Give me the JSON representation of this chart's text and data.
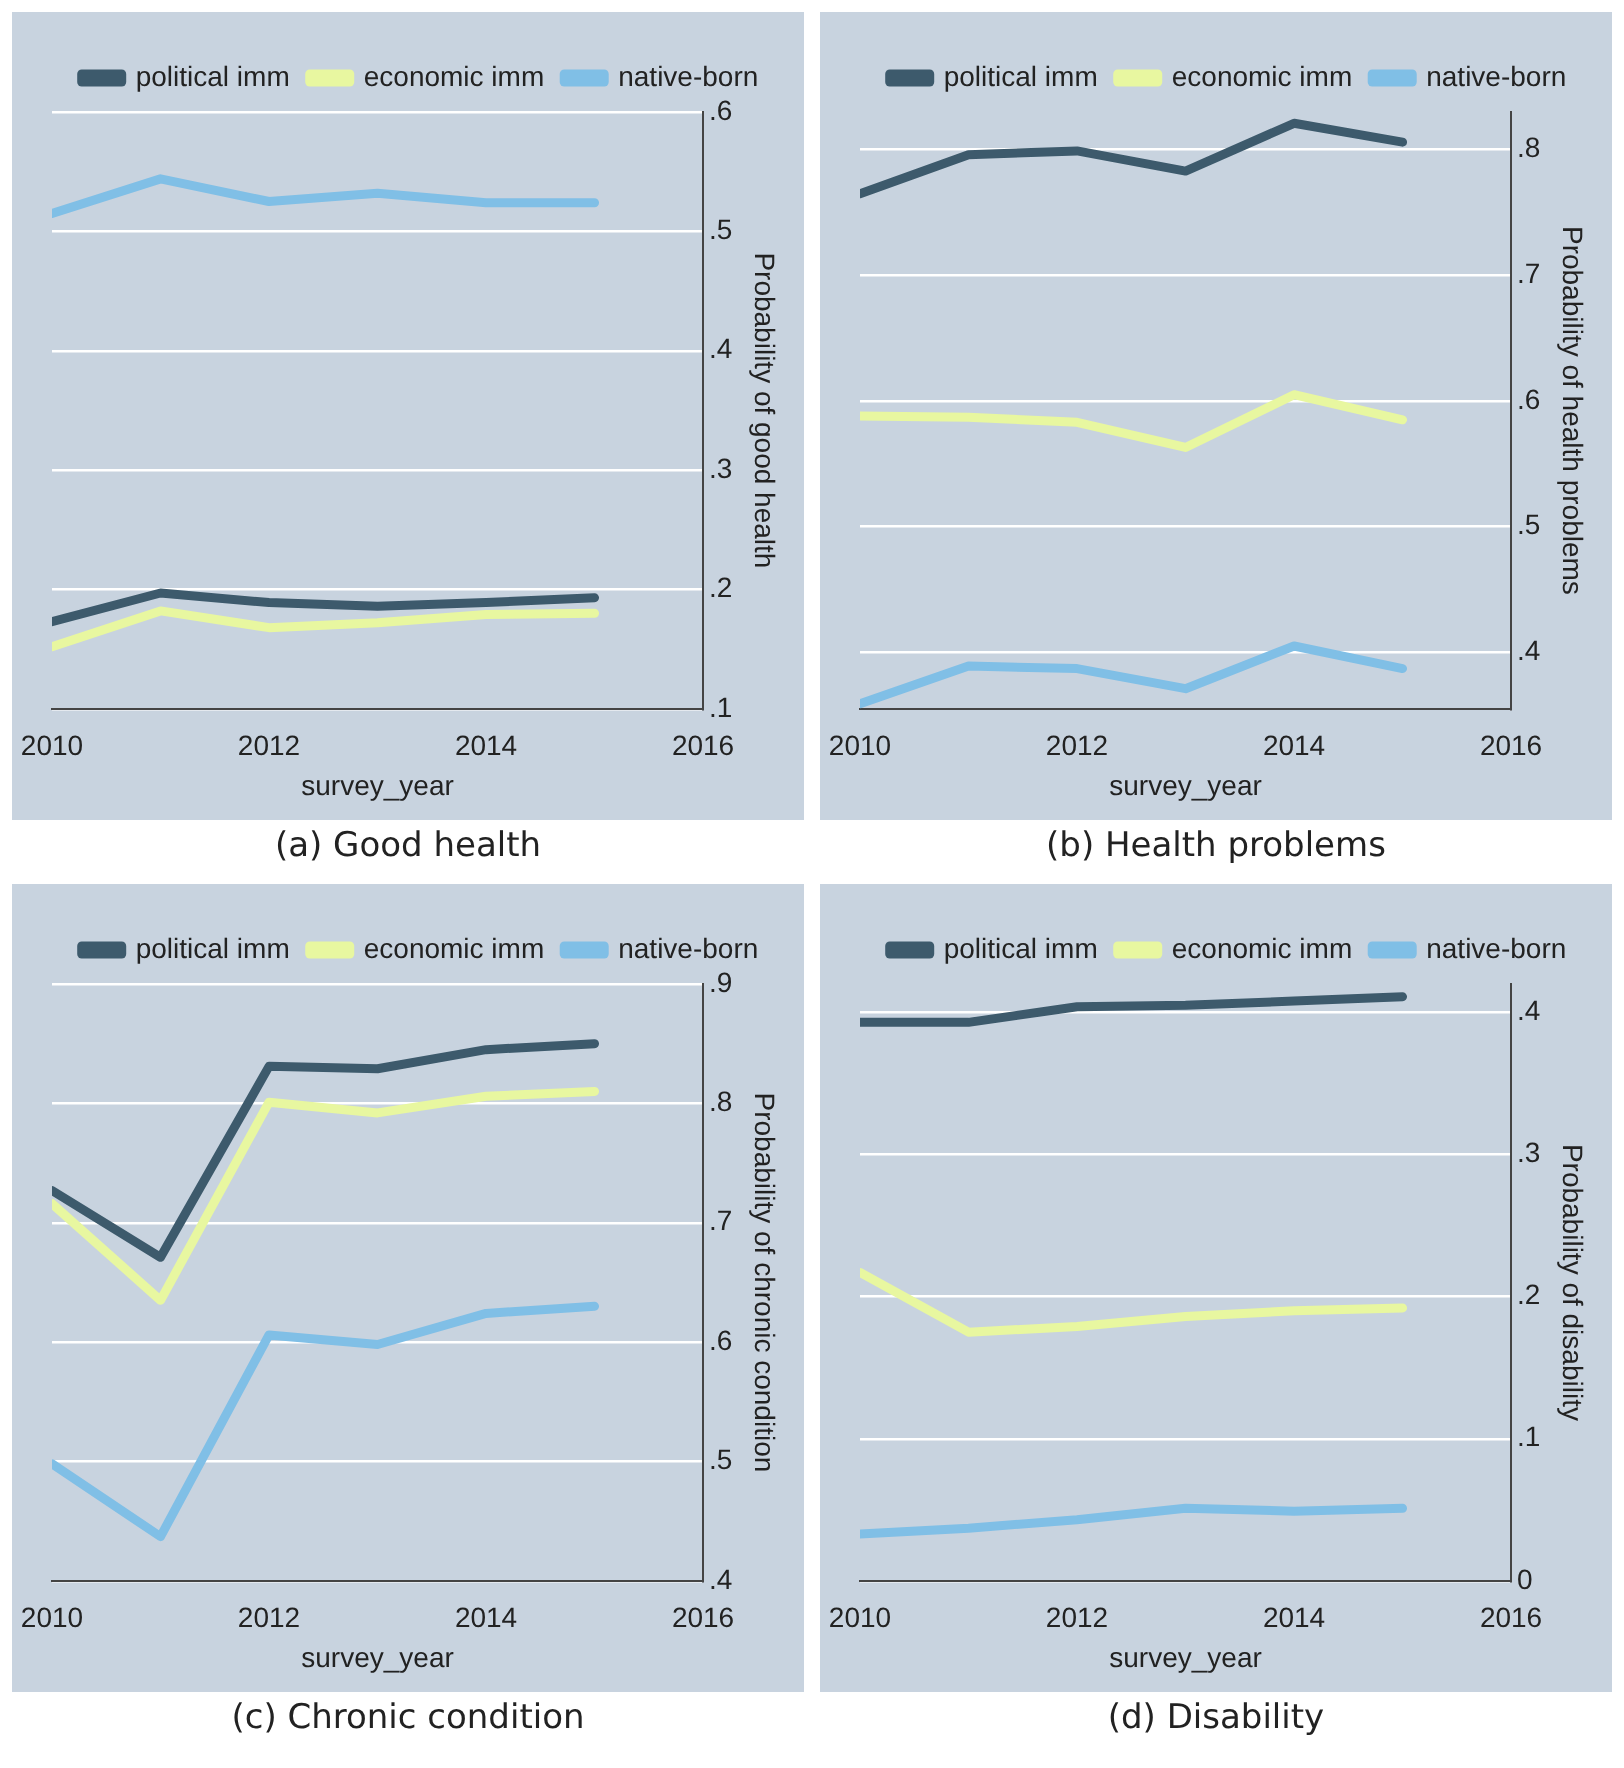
{
  "chart_data": [
    {
      "type": "line",
      "title": "(a)  Good health",
      "xlabel": "survey_year",
      "ylabel": "Probability of good health",
      "x": [
        2010,
        2011,
        2012,
        2013,
        2014,
        2015
      ],
      "xlim": [
        2010,
        2016
      ],
      "xticks": [
        2010,
        2012,
        2014,
        2016
      ],
      "ylim": [
        0.1,
        0.6
      ],
      "yticks": [
        {
          "value": 0.1,
          "label": ".1"
        },
        {
          "value": 0.2,
          "label": ".2"
        },
        {
          "value": 0.3,
          "label": ".3"
        },
        {
          "value": 0.4,
          "label": ".4"
        },
        {
          "value": 0.5,
          "label": ".5"
        },
        {
          "value": 0.6,
          "label": ".6"
        }
      ],
      "grid": "y",
      "legend": "top",
      "marker": "none",
      "series": [
        {
          "name": "political imm",
          "color": "#3d5a6c",
          "values": [
            0.173,
            0.197,
            0.189,
            0.186,
            0.189,
            0.193
          ]
        },
        {
          "name": "economic imm",
          "color": "#e8f7a0",
          "values": [
            0.152,
            0.182,
            0.168,
            0.172,
            0.179,
            0.18
          ]
        },
        {
          "name": "native-born",
          "color": "#80bfe6",
          "values": [
            0.515,
            0.544,
            0.525,
            0.532,
            0.524,
            0.524
          ]
        }
      ]
    },
    {
      "type": "line",
      "title": "(b) Health problems",
      "xlabel": "survey_year",
      "ylabel": "Probability of health problems",
      "x": [
        2010,
        2011,
        2012,
        2013,
        2014,
        2015
      ],
      "xlim": [
        2010,
        2016
      ],
      "xticks": [
        2010,
        2012,
        2014,
        2016
      ],
      "ylim": [
        0.355,
        0.83
      ],
      "yticks": [
        {
          "value": 0.4,
          "label": ".4"
        },
        {
          "value": 0.5,
          "label": ".5"
        },
        {
          "value": 0.6,
          "label": ".6"
        },
        {
          "value": 0.7,
          "label": ".7"
        },
        {
          "value": 0.8,
          "label": ".8"
        }
      ],
      "grid": "y",
      "legend": "top",
      "marker": "none",
      "series": [
        {
          "name": "political imm",
          "color": "#3d5a6c",
          "values": [
            0.765,
            0.796,
            0.799,
            0.783,
            0.821,
            0.806
          ]
        },
        {
          "name": "economic imm",
          "color": "#e8f7a0",
          "values": [
            0.588,
            0.587,
            0.583,
            0.563,
            0.605,
            0.585
          ]
        },
        {
          "name": "native-born",
          "color": "#80bfe6",
          "values": [
            0.359,
            0.389,
            0.387,
            0.371,
            0.405,
            0.387
          ]
        }
      ]
    },
    {
      "type": "line",
      "title": "(c)  Chronic condition",
      "xlabel": "survey_year",
      "ylabel": "Probability of chronic condition",
      "x": [
        2010,
        2011,
        2012,
        2013,
        2014,
        2015
      ],
      "xlim": [
        2010,
        2016
      ],
      "xticks": [
        2010,
        2012,
        2014,
        2016
      ],
      "ylim": [
        0.4,
        0.9
      ],
      "yticks": [
        {
          "value": 0.4,
          "label": ".4"
        },
        {
          "value": 0.5,
          "label": ".5"
        },
        {
          "value": 0.6,
          "label": ".6"
        },
        {
          "value": 0.7,
          "label": ".7"
        },
        {
          "value": 0.8,
          "label": ".8"
        },
        {
          "value": 0.9,
          "label": ".9"
        }
      ],
      "grid": "y",
      "legend": "top",
      "marker": "none",
      "series": [
        {
          "name": "political imm",
          "color": "#3d5a6c",
          "values": [
            0.727,
            0.671,
            0.831,
            0.829,
            0.845,
            0.85
          ]
        },
        {
          "name": "economic imm",
          "color": "#e8f7a0",
          "values": [
            0.716,
            0.635,
            0.801,
            0.792,
            0.806,
            0.81
          ]
        },
        {
          "name": "native-born",
          "color": "#80bfe6",
          "values": [
            0.498,
            0.437,
            0.606,
            0.598,
            0.624,
            0.63
          ]
        }
      ]
    },
    {
      "type": "line",
      "title": "(d) Disability",
      "xlabel": "survey_year",
      "ylabel": "Probability of disability",
      "x": [
        2010,
        2011,
        2012,
        2013,
        2014,
        2015
      ],
      "xlim": [
        2010,
        2016
      ],
      "xticks": [
        2010,
        2012,
        2014,
        2016
      ],
      "ylim": [
        0,
        0.42
      ],
      "yticks": [
        0,
        {
          "value": 0.1,
          "label": ".1"
        },
        {
          "value": 0.2,
          "label": ".2"
        },
        {
          "value": 0.3,
          "label": ".3"
        },
        {
          "value": 0.4,
          "label": ".4"
        }
      ],
      "grid": "y",
      "legend": "top",
      "marker": "none",
      "series": [
        {
          "name": "political imm",
          "color": "#3d5a6c",
          "values": [
            0.393,
            0.393,
            0.404,
            0.405,
            0.408,
            0.411
          ]
        },
        {
          "name": "economic imm",
          "color": "#e8f7a0",
          "values": [
            0.217,
            0.175,
            0.179,
            0.186,
            0.19,
            0.192
          ]
        },
        {
          "name": "native-born",
          "color": "#80bfe6",
          "values": [
            0.033,
            0.037,
            0.043,
            0.051,
            0.049,
            0.051
          ]
        }
      ]
    }
  ]
}
